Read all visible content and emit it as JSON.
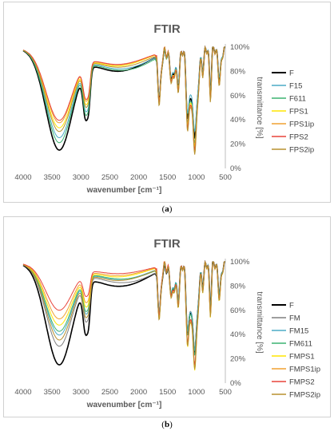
{
  "chart_data": [
    {
      "type": "line",
      "panel_label": "a",
      "title": "FTIR",
      "xlabel": "wavenumber [cm⁻¹]",
      "ylabel": "transmittance [%]",
      "xlim": [
        4000,
        500
      ],
      "ylim": [
        0,
        100
      ],
      "x_ticks": [
        "4000",
        "3500",
        "3000",
        "2500",
        "2000",
        "1500",
        "1000",
        "500"
      ],
      "y_ticks": [
        "0%",
        "20%",
        "40%",
        "60%",
        "80%",
        "100%"
      ],
      "grid": false,
      "legend_position": "right",
      "series": [
        {
          "name": "F",
          "color": "#000000",
          "min_y": 18,
          "peak_y": 98,
          "dip_y": 22
        },
        {
          "name": "F15",
          "color": "#4bacc6",
          "min_y": 28,
          "peak_y": 97,
          "dip_y": 28
        },
        {
          "name": "F611",
          "color": "#3cb371",
          "min_y": 24,
          "peak_y": 96,
          "dip_y": 18
        },
        {
          "name": "FPS1",
          "color": "#ffe600",
          "min_y": 36,
          "peak_y": 99,
          "dip_y": 15
        },
        {
          "name": "FPS1ip",
          "color": "#f0a030",
          "min_y": 40,
          "peak_y": 99,
          "dip_y": 10
        },
        {
          "name": "FPS2",
          "color": "#e8443a",
          "min_y": 42,
          "peak_y": 99,
          "dip_y": 12
        },
        {
          "name": "FPS2ip",
          "color": "#b8912f",
          "min_y": 33,
          "peak_y": 98,
          "dip_y": 8
        }
      ]
    },
    {
      "type": "line",
      "panel_label": "b",
      "title": "FTIR",
      "xlabel": "wavenumber [cm⁻¹]",
      "ylabel": "transmittance [%]",
      "xlim": [
        4000,
        500
      ],
      "ylim": [
        0,
        100
      ],
      "x_ticks": [
        "4000",
        "3500",
        "3000",
        "2500",
        "2000",
        "1500",
        "1000",
        "500"
      ],
      "y_ticks": [
        "0%",
        "20%",
        "40%",
        "60%",
        "80%",
        "100%"
      ],
      "grid": false,
      "legend_position": "right",
      "series": [
        {
          "name": "F",
          "color": "#000000",
          "min_y": 18,
          "peak_y": 97,
          "dip_y": 22
        },
        {
          "name": "FM",
          "color": "#7f7f7f",
          "min_y": 33,
          "peak_y": 96,
          "dip_y": 25
        },
        {
          "name": "FM15",
          "color": "#4bacc6",
          "min_y": 42,
          "peak_y": 98,
          "dip_y": 24
        },
        {
          "name": "FM611",
          "color": "#3cb371",
          "min_y": 45,
          "peak_y": 97,
          "dip_y": 20
        },
        {
          "name": "FMPS1",
          "color": "#ffe600",
          "min_y": 50,
          "peak_y": 99,
          "dip_y": 7
        },
        {
          "name": "FMPS1ip",
          "color": "#f0a030",
          "min_y": 55,
          "peak_y": 99,
          "dip_y": 10
        },
        {
          "name": "FMPS2",
          "color": "#e8443a",
          "min_y": 62,
          "peak_y": 99,
          "dip_y": 12
        },
        {
          "name": "FMPS2ip",
          "color": "#b8912f",
          "min_y": 38,
          "peak_y": 98,
          "dip_y": 8
        }
      ]
    }
  ],
  "captions": {
    "a": "a",
    "b": "b"
  }
}
